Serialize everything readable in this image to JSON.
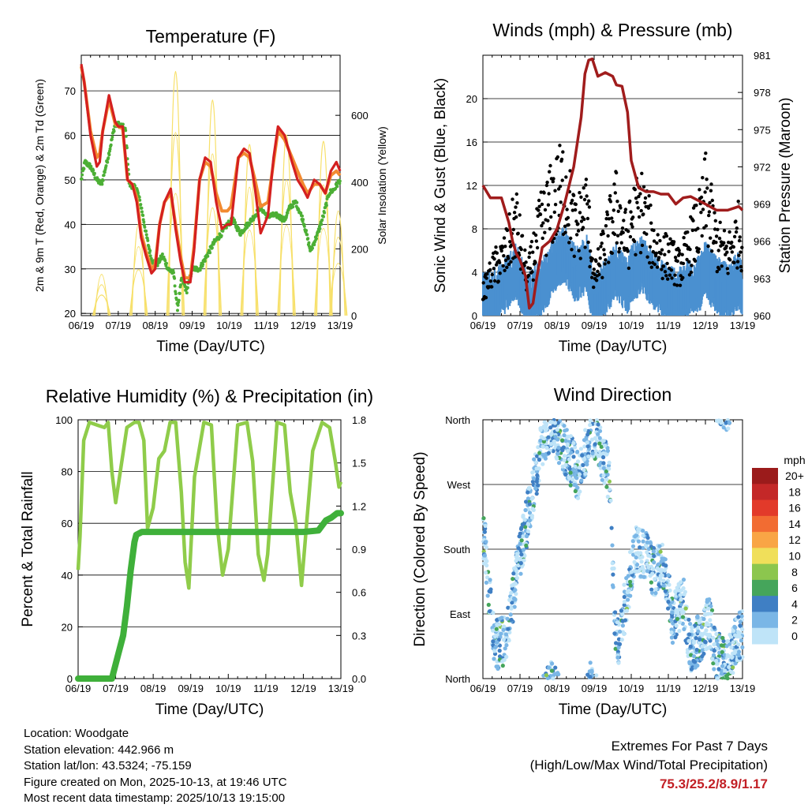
{
  "colors": {
    "temp_red": "#d42020",
    "temp_orange": "#f28a30",
    "dewpoint_green": "#4caf35",
    "solar_yellow": "#f7e06a",
    "wind_blue": "#4a90d0",
    "gust_black": "#000000",
    "pressure_maroon": "#a01c1c",
    "rh_lightgreen": "#8fcc4a",
    "precip_green": "#3fb03a",
    "grid": "#000000"
  },
  "time_ticks": [
    "06/19",
    "07/19",
    "08/19",
    "09/19",
    "10/19",
    "11/19",
    "12/19",
    "13/19"
  ],
  "chart_data": [
    {
      "id": "temperature",
      "type": "line",
      "title": "Temperature (F)",
      "xlabel": "Time (Day/UTC)",
      "ylabel": "2m & 9m T (Red, Orange) & 2m Td (Green)",
      "y2label": "Solar Insolation (Yellow)",
      "categories": [
        "06/19",
        "07/19",
        "08/19",
        "09/19",
        "10/19",
        "11/19",
        "12/19",
        "13/19"
      ],
      "ylim": [
        19.5,
        78
      ],
      "yticks": [
        20,
        30,
        40,
        50,
        60,
        70
      ],
      "y2lim": [
        0,
        780
      ],
      "y2ticks": [
        0,
        200,
        400,
        600
      ],
      "series": [
        {
          "name": "2m T",
          "color": "#d42020",
          "x": [
            0,
            0.08,
            0.25,
            0.42,
            0.5,
            0.58,
            0.75,
            0.92,
            1.0,
            1.12,
            1.25,
            1.38,
            1.5,
            1.62,
            1.75,
            1.9,
            2.0,
            2.12,
            2.25,
            2.42,
            2.55,
            2.68,
            2.8,
            2.95,
            3.05,
            3.2,
            3.35,
            3.5,
            3.65,
            3.8,
            3.95,
            4.05,
            4.25,
            4.4,
            4.55,
            4.7,
            4.85,
            5.05,
            5.2,
            5.32,
            5.5,
            5.7,
            5.85,
            6.0,
            6.12,
            6.3,
            6.45,
            6.6,
            6.75,
            6.9,
            7.0
          ],
          "y": [
            76,
            72,
            60,
            53,
            54,
            61,
            69,
            63,
            62,
            62,
            50,
            49,
            45,
            37,
            33,
            29,
            30,
            40,
            45,
            48,
            39,
            32,
            27,
            27,
            34,
            50,
            55,
            54,
            45,
            39,
            40,
            40,
            55,
            57,
            56,
            48,
            38,
            42,
            55,
            62,
            60,
            54,
            50,
            48,
            46,
            50,
            49,
            47,
            52,
            54,
            52
          ]
        },
        {
          "name": "9m T",
          "color": "#f28a30",
          "x": [
            0,
            0.08,
            0.25,
            0.42,
            0.5,
            0.58,
            0.75,
            0.92,
            1.0,
            1.12,
            1.25,
            1.38,
            1.5,
            1.62,
            1.75,
            1.9,
            2.0,
            2.12,
            2.25,
            2.42,
            2.55,
            2.68,
            2.8,
            2.95,
            3.05,
            3.2,
            3.35,
            3.5,
            3.65,
            3.8,
            3.95,
            4.05,
            4.25,
            4.4,
            4.55,
            4.7,
            4.85,
            5.05,
            5.2,
            5.32,
            5.5,
            5.7,
            5.85,
            6.0,
            6.12,
            6.3,
            6.45,
            6.6,
            6.75,
            6.9,
            7.0
          ],
          "y": [
            75.5,
            72,
            61,
            55,
            56,
            61,
            68,
            62.5,
            62,
            61.5,
            50,
            49,
            46,
            38,
            34,
            30,
            31,
            40,
            45,
            47,
            40,
            33,
            28,
            28,
            35,
            50,
            54,
            53,
            47,
            43,
            43,
            44,
            55,
            56,
            55,
            50,
            44,
            45,
            54,
            61,
            59,
            55,
            52,
            49,
            47,
            49,
            49,
            47,
            51,
            52,
            51
          ]
        },
        {
          "name": "2m Td",
          "color": "#4caf35",
          "x": [
            0,
            0.1,
            0.25,
            0.42,
            0.55,
            0.75,
            0.9,
            1.0,
            1.12,
            1.2,
            1.3,
            1.5,
            1.62,
            1.75,
            1.9,
            2.05,
            2.2,
            2.35,
            2.5,
            2.6,
            2.72,
            2.85,
            3.0,
            3.2,
            3.4,
            3.6,
            3.8,
            3.95,
            4.1,
            4.3,
            4.5,
            4.7,
            4.85,
            5.0,
            5.15,
            5.3,
            5.5,
            5.65,
            5.8,
            6.0,
            6.2,
            6.4,
            6.55,
            6.7,
            6.85,
            7.0
          ],
          "y": [
            50,
            54,
            53,
            50,
            49,
            56,
            62,
            62.5,
            62,
            61,
            49,
            48,
            44,
            38,
            32,
            31,
            33,
            30,
            29,
            21,
            28,
            25,
            30,
            30,
            33,
            36,
            38,
            40,
            41,
            38,
            40,
            42,
            44,
            42,
            42,
            42,
            41,
            44,
            45,
            41,
            34,
            38,
            42,
            47,
            48,
            50
          ]
        },
        {
          "name": "Solar Insolation",
          "color": "#f7e06a",
          "axis": "y2",
          "peaks_x": [
            0.55,
            1.55,
            2.55,
            3.55,
            4.55,
            5.55,
            6.55,
            6.95
          ],
          "peaks_y": [
            130,
            290,
            770,
            680,
            540,
            570,
            550,
            330
          ]
        }
      ]
    },
    {
      "id": "winds",
      "type": "scatter",
      "title": "Winds (mph) & Pressure (mb)",
      "xlabel": "Time (Day/UTC)",
      "ylabel": "Sonic Wind & Gust (Blue, Black)",
      "y2label": "Station Pressure (Maroon)",
      "categories": [
        "06/19",
        "07/19",
        "08/19",
        "09/19",
        "10/19",
        "11/19",
        "12/19",
        "13/19"
      ],
      "ylim": [
        0,
        24
      ],
      "yticks": [
        0,
        4,
        8,
        12,
        16,
        20
      ],
      "y2lim": [
        960,
        981
      ],
      "y2ticks": [
        960,
        963,
        966,
        969,
        972,
        975,
        978,
        981
      ],
      "series": [
        {
          "name": "Sonic Wind",
          "color": "#4a90d0",
          "x": [
            0,
            0.3,
            0.6,
            0.9,
            1.0,
            1.2,
            1.5,
            1.8,
            2.0,
            2.2,
            2.5,
            2.8,
            3.0,
            3.3,
            3.6,
            3.9,
            4.0,
            4.3,
            4.6,
            4.9,
            5.0,
            5.3,
            5.6,
            5.9,
            6.0,
            6.3,
            6.6,
            6.9,
            7.0
          ],
          "y": [
            1.5,
            2,
            3,
            4.5,
            3.5,
            1.5,
            2.5,
            4,
            5.5,
            6,
            4,
            5,
            1.5,
            3,
            4.5,
            3,
            4,
            5,
            3.5,
            2.5,
            2.5,
            2,
            3,
            3.5,
            4.5,
            3,
            2.5,
            3.5,
            3
          ]
        },
        {
          "name": "Gust",
          "color": "#000000",
          "x": [
            0,
            0.3,
            0.6,
            0.9,
            1.0,
            1.2,
            1.5,
            1.8,
            2.0,
            2.2,
            2.5,
            2.8,
            3.0,
            3.3,
            3.6,
            3.9,
            4.0,
            4.3,
            4.6,
            4.9,
            5.0,
            5.3,
            5.6,
            5.9,
            6.0,
            6.3,
            6.6,
            6.9,
            7.0
          ],
          "y": [
            2,
            4,
            5,
            8,
            6,
            3,
            7,
            9,
            10,
            11,
            7,
            9,
            3,
            6,
            9,
            6,
            8,
            9,
            6,
            5,
            5,
            4,
            6,
            8,
            10,
            6,
            5,
            7,
            6
          ]
        },
        {
          "name": "Station Pressure",
          "color": "#a01c1c",
          "axis": "y2",
          "x": [
            0,
            0.2,
            0.5,
            0.7,
            0.8,
            0.9,
            1.0,
            1.15,
            1.25,
            1.35,
            1.45,
            1.6,
            1.8,
            2.0,
            2.2,
            2.45,
            2.65,
            2.75,
            2.85,
            2.95,
            3.1,
            3.3,
            3.5,
            3.6,
            3.75,
            3.9,
            4.0,
            4.2,
            4.4,
            4.6,
            4.8,
            5.0,
            5.2,
            5.4,
            5.6,
            5.8,
            6.0,
            6.3,
            6.6,
            6.9,
            7.0
          ],
          "y": [
            970.5,
            969.5,
            969.5,
            967.5,
            966,
            965,
            964.5,
            963.2,
            960.6,
            961,
            963,
            965.5,
            966,
            967,
            969,
            972,
            976,
            979.5,
            980.6,
            980.7,
            979.3,
            979.6,
            979.3,
            978.6,
            978.5,
            976.4,
            972.5,
            970.3,
            970,
            970,
            969.8,
            969.8,
            969,
            969.5,
            969.6,
            969.3,
            969,
            968.5,
            968.5,
            968.8,
            968.5
          ]
        }
      ]
    },
    {
      "id": "humidity",
      "type": "line",
      "title": "Relative Humidity (%) & Precipitation (in)",
      "xlabel": "Time (Day/UTC)",
      "ylabel": "Percent & Total Rainfall",
      "categories": [
        "06/19",
        "07/19",
        "08/19",
        "09/19",
        "10/19",
        "11/19",
        "12/19",
        "13/19"
      ],
      "ylim": [
        0,
        100
      ],
      "yticks": [
        0,
        20,
        40,
        60,
        80,
        100
      ],
      "y2lim": [
        0,
        1.8
      ],
      "y2ticks": [
        "0.0",
        "0.3",
        "0.6",
        "0.9",
        "1.2",
        "1.5",
        "1.8"
      ],
      "series": [
        {
          "name": "Relative Humidity",
          "color": "#8fcc4a",
          "x": [
            0,
            0.05,
            0.15,
            0.3,
            0.5,
            0.7,
            0.8,
            0.9,
            1.0,
            1.3,
            1.5,
            1.62,
            1.75,
            1.85,
            2.0,
            2.15,
            2.3,
            2.45,
            2.6,
            2.75,
            2.85,
            2.95,
            3.1,
            3.35,
            3.55,
            3.7,
            3.85,
            4.0,
            4.25,
            4.5,
            4.65,
            4.8,
            4.95,
            5.05,
            5.3,
            5.5,
            5.65,
            5.8,
            5.95,
            6.1,
            6.25,
            6.5,
            6.7,
            6.85,
            6.95,
            7.0
          ],
          "y": [
            42,
            55,
            92,
            99,
            98,
            97,
            99,
            80,
            68,
            97,
            99,
            99,
            92,
            58,
            66,
            85,
            88,
            99,
            99,
            72,
            45,
            35,
            78,
            99,
            98,
            60,
            40,
            50,
            98,
            99,
            84,
            48,
            38,
            48,
            99,
            98,
            72,
            60,
            36,
            62,
            88,
            99,
            97,
            84,
            74,
            76
          ]
        },
        {
          "name": "Total Rainfall",
          "color": "#3fb03a",
          "x": [
            0,
            0.3,
            0.6,
            0.9,
            1.05,
            1.2,
            1.3,
            1.4,
            1.5,
            1.55,
            1.7,
            2.0,
            3.0,
            4.0,
            5.0,
            6.0,
            6.4,
            6.6,
            6.75,
            6.9,
            7.0
          ],
          "y": [
            0,
            0,
            0,
            0,
            0.15,
            0.3,
            0.5,
            0.75,
            0.95,
            1.0,
            1.02,
            1.02,
            1.02,
            1.02,
            1.02,
            1.02,
            1.03,
            1.1,
            1.12,
            1.15,
            1.15
          ]
        }
      ]
    },
    {
      "id": "wind_direction",
      "type": "scatter",
      "title": "Wind Direction",
      "xlabel": "Time (Day/UTC)",
      "ylabel": "Direction (Colored By Speed)",
      "categories": [
        "06/19",
        "07/19",
        "08/19",
        "09/19",
        "10/19",
        "11/19",
        "12/19",
        "13/19"
      ],
      "ylim": [
        0,
        360
      ],
      "ytick_labels": [
        "North",
        "East",
        "South",
        "West",
        "North"
      ],
      "colorbar": {
        "title": "mph",
        "labels": [
          "20+",
          "18",
          "16",
          "14",
          "12",
          "10",
          "8",
          "6",
          "4",
          "2",
          "0"
        ],
        "colors": [
          "#9b1b1b",
          "#c42828",
          "#e23a2a",
          "#f26c32",
          "#f9a545",
          "#f0df5a",
          "#8cc64e",
          "#45a55b",
          "#3f7fc4",
          "#7ab6e6",
          "#bfe4f8"
        ]
      },
      "series": [
        {
          "name": "Direction",
          "x": [
            0.05,
            0.3,
            0.6,
            0.8,
            1.0,
            1.3,
            1.6,
            1.8,
            2.0,
            2.2,
            2.4,
            2.6,
            2.9,
            3.1,
            3.4,
            3.6,
            3.9,
            4.1,
            4.4,
            4.6,
            4.9,
            5.1,
            5.4,
            5.6,
            5.9,
            6.1,
            6.3,
            6.6,
            6.8,
            6.95
          ],
          "y": [
            190,
            45,
            55,
            110,
            170,
            250,
            330,
            350,
            340,
            320,
            300,
            280,
            350,
            330,
            280,
            40,
            120,
            180,
            170,
            150,
            160,
            80,
            110,
            40,
            60,
            80,
            30,
            20,
            50,
            60
          ]
        }
      ]
    }
  ],
  "info": {
    "location": "Location: Woodgate",
    "elevation": "Station elevation: 442.966 m",
    "latlon": "Station lat/lon: 43.5324; -75.159",
    "created": "Figure created on Mon, 2025-10-13, at 19:46 UTC",
    "latest": "Most recent data timestamp: 2025/10/13 19:15:00"
  },
  "extremes": {
    "title": "Extremes For Past 7 Days",
    "subtitle": "(High/Low/Max Wind/Total Precipitation)",
    "values": "75.3/25.2/8.9/1.17"
  }
}
